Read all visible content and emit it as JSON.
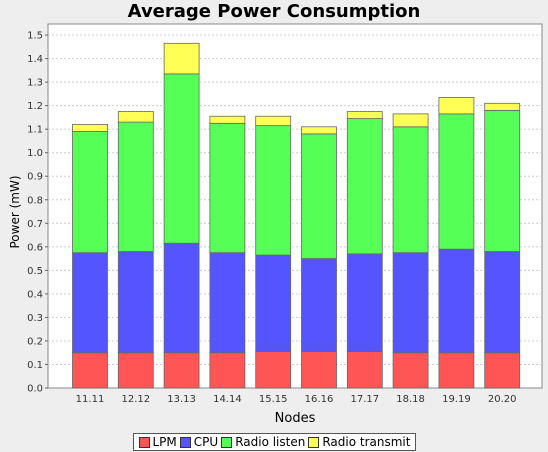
{
  "chart_data": {
    "type": "bar",
    "stacked": true,
    "title": "Average Power Consumption",
    "xlabel": "Nodes",
    "ylabel": "Power (mW)",
    "ylim": [
      0,
      1.55
    ],
    "yticks": [
      "0.0",
      "0.1",
      "0.2",
      "0.3",
      "0.4",
      "0.5",
      "0.6",
      "0.7",
      "0.8",
      "0.9",
      "1.0",
      "1.1",
      "1.2",
      "1.3",
      "1.4",
      "1.5"
    ],
    "grid": true,
    "legend_position": "bottom",
    "categories": [
      "11.11",
      "12.12",
      "13.13",
      "14.14",
      "15.15",
      "16.16",
      "17.17",
      "18.18",
      "19.19",
      "20.20"
    ],
    "series": [
      {
        "name": "LPM",
        "color": "#ff5555",
        "values": [
          0.15,
          0.15,
          0.15,
          0.15,
          0.155,
          0.155,
          0.155,
          0.15,
          0.15,
          0.15
        ]
      },
      {
        "name": "CPU",
        "color": "#5555ff",
        "values": [
          0.425,
          0.43,
          0.465,
          0.425,
          0.41,
          0.395,
          0.415,
          0.425,
          0.44,
          0.43
        ]
      },
      {
        "name": "Radio listen",
        "color": "#55ff55",
        "values": [
          0.515,
          0.55,
          0.72,
          0.55,
          0.55,
          0.53,
          0.575,
          0.535,
          0.575,
          0.6
        ]
      },
      {
        "name": "Radio transmit",
        "color": "#ffff55",
        "values": [
          0.03,
          0.045,
          0.13,
          0.03,
          0.04,
          0.03,
          0.03,
          0.055,
          0.07,
          0.03
        ]
      }
    ]
  }
}
